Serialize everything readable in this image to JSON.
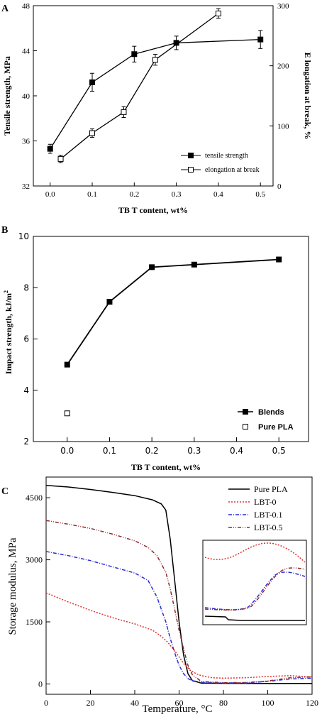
{
  "colors": {
    "axis": "#000000",
    "pure_pla": "#000000",
    "lbt0": "#e03030",
    "lbt01": "#2b2bd8",
    "lbt05": "#8b2a2a"
  },
  "chart_data": [
    {
      "panel": "A",
      "type": "line",
      "xlabel": "TB T content, wt%",
      "ylabel": "Tensile strength, MPa",
      "y2label": "E longation at break, %",
      "xlim": [
        -0.04,
        0.53
      ],
      "ylim": [
        32,
        48
      ],
      "y2lim": [
        0,
        300
      ],
      "xticks": [
        "0.0",
        "0.1",
        "0.2",
        "0.3",
        "0.4",
        "0.5"
      ],
      "yticks": [
        "32",
        "36",
        "40",
        "44",
        "48"
      ],
      "y2ticks": [
        "0",
        "100",
        "200",
        "300"
      ],
      "legend_position": "bottom-right",
      "series": [
        {
          "name": "tensile strength",
          "axis": "left",
          "marker": "filled-square",
          "x": [
            0.0,
            0.1,
            0.2,
            0.3,
            0.5
          ],
          "y": [
            35.3,
            41.2,
            43.7,
            44.7,
            45.0
          ],
          "err": [
            0.4,
            0.8,
            0.7,
            0.6,
            0.8
          ]
        },
        {
          "name": "elongation at break",
          "axis": "right",
          "marker": "open-square",
          "x": [
            0.025,
            0.1,
            0.175,
            0.25,
            0.4
          ],
          "y": [
            45,
            88,
            123,
            210,
            287
          ],
          "err": [
            6,
            7,
            9,
            9,
            8
          ]
        }
      ]
    },
    {
      "panel": "B",
      "type": "line",
      "xlabel": "TB T content, wt%",
      "ylabel": "Impact strength, kJ/m",
      "ylabel_sup": "2",
      "xlim": [
        -0.08,
        0.57
      ],
      "ylim": [
        2,
        10
      ],
      "xticks": [
        "0.0",
        "0.1",
        "0.2",
        "0.3",
        "0.4",
        "0.5"
      ],
      "yticks": [
        "2",
        "4",
        "6",
        "8",
        "10"
      ],
      "legend_position": "bottom-right",
      "series": [
        {
          "name": "Blends",
          "marker": "filled-square",
          "x": [
            0.0,
            0.1,
            0.2,
            0.3,
            0.5
          ],
          "y": [
            5.0,
            7.45,
            8.8,
            8.9,
            9.1
          ]
        },
        {
          "name": "Pure PLA",
          "marker": "open-square",
          "x": [
            0.0
          ],
          "y": [
            3.1
          ]
        }
      ]
    },
    {
      "panel": "C",
      "type": "line",
      "xlabel": "Temperature, °C",
      "ylabel": "Storage modulus, MPa",
      "xlim": [
        0,
        120
      ],
      "ylim": [
        -250,
        5000
      ],
      "xticks": [
        "0",
        "20",
        "40",
        "60",
        "80",
        "100",
        "120"
      ],
      "yticks": [
        "0",
        "1500",
        "3000",
        "4500"
      ],
      "legend_position": "top-right",
      "inset_position": "right",
      "series": [
        {
          "name": "Pure PLA",
          "style": "solid",
          "x": [
            0,
            10,
            20,
            30,
            40,
            48,
            52,
            54,
            56,
            58,
            60,
            62,
            64,
            66,
            70,
            80,
            100,
            120
          ],
          "y": [
            4800,
            4760,
            4700,
            4630,
            4550,
            4450,
            4350,
            4200,
            3500,
            2500,
            1500,
            700,
            250,
            80,
            20,
            15,
            12,
            10
          ]
        },
        {
          "name": "LBT-0",
          "style": "dotted",
          "x": [
            0,
            10,
            20,
            30,
            40,
            48,
            52,
            55,
            58,
            60,
            62,
            65,
            68,
            70,
            75,
            80,
            90,
            100,
            110,
            120
          ],
          "y": [
            2200,
            1980,
            1780,
            1600,
            1450,
            1300,
            1150,
            1000,
            800,
            650,
            500,
            330,
            240,
            200,
            150,
            140,
            150,
            180,
            200,
            170
          ]
        },
        {
          "name": "LBT-0.1",
          "style": "dashdot",
          "x": [
            0,
            10,
            20,
            30,
            40,
            46,
            50,
            54,
            56,
            58,
            60,
            62,
            64,
            66,
            70,
            80,
            90,
            100,
            110,
            120
          ],
          "y": [
            3200,
            3100,
            2980,
            2830,
            2680,
            2500,
            2100,
            1500,
            1100,
            750,
            450,
            250,
            130,
            80,
            40,
            25,
            25,
            60,
            120,
            140
          ]
        },
        {
          "name": "LBT-0.5",
          "style": "dashdotdot",
          "x": [
            0,
            10,
            20,
            30,
            40,
            46,
            50,
            54,
            56,
            58,
            60,
            62,
            64,
            66,
            70,
            80,
            90,
            100,
            110,
            120
          ],
          "y": [
            3950,
            3860,
            3760,
            3620,
            3460,
            3300,
            3100,
            2700,
            2300,
            1800,
            1300,
            850,
            450,
            220,
            60,
            30,
            35,
            70,
            150,
            170
          ]
        }
      ]
    }
  ]
}
